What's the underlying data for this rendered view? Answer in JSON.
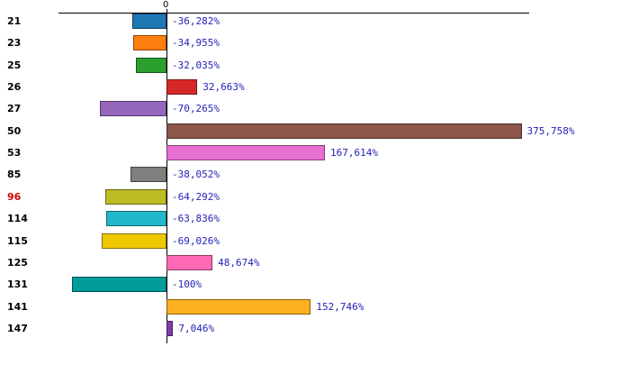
{
  "chart": {
    "value_text_color": "#2222bb",
    "category_text_color": "#000000",
    "highlight_text_color": "#cc0000",
    "background_color": "#ffffff"
  },
  "chart_data": {
    "type": "bar",
    "orientation": "horizontal",
    "title": "",
    "xlabel": "",
    "ylabel": "",
    "categories": [
      "21",
      "23",
      "25",
      "26",
      "27",
      "50",
      "53",
      "85",
      "96",
      "114",
      "115",
      "125",
      "131",
      "141",
      "147"
    ],
    "values": [
      -36.282,
      -34.955,
      -32.035,
      32.663,
      -70.265,
      375.758,
      167.614,
      -38.052,
      -64.292,
      -63.836,
      -69.026,
      48.674,
      -100,
      152.746,
      7.046
    ],
    "value_labels": [
      "-36,282%",
      "-34,955%",
      "-32,035%",
      "32,663%",
      "-70,265%",
      "375,758%",
      "167,614%",
      "-38,052%",
      "-64,292%",
      "-63,836%",
      "-69,026%",
      "48,674%",
      "-100%",
      "152,746%",
      "7,046%"
    ],
    "bar_colors": [
      "#1f77b4",
      "#ff7f0e",
      "#2ca02c",
      "#d62728",
      "#9467bd",
      "#8c564b",
      "#e86fd2",
      "#7f7f7f",
      "#bcbd22",
      "#22b8cc",
      "#eec900",
      "#ff69b4",
      "#009c9c",
      "#ffb020",
      "#7d3cad"
    ],
    "highlighted_categories": [
      "96"
    ],
    "axis": {
      "zero_label": "0",
      "xlim": [
        -114,
        384
      ],
      "grid": false,
      "legend": false
    }
  }
}
